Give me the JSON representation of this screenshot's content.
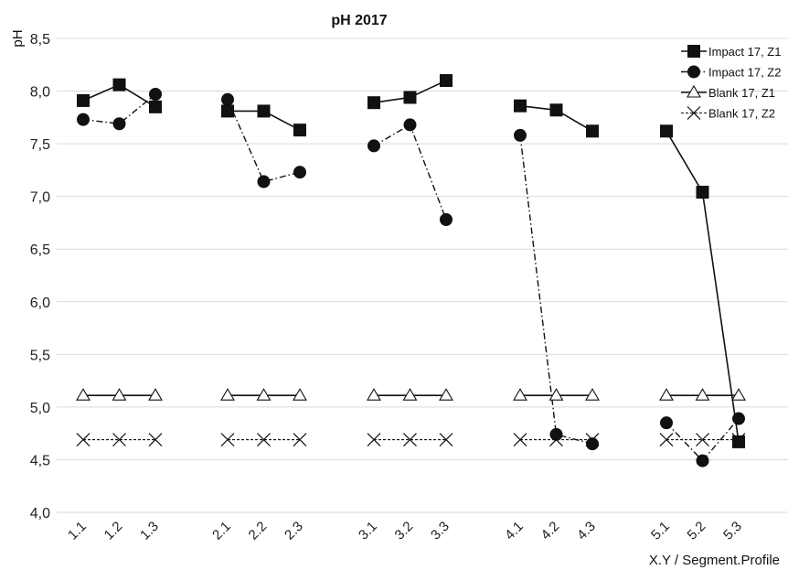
{
  "chart_data": {
    "type": "line",
    "title": "pH 2017",
    "ylabel": "pH",
    "xlabel": "X.Y  / Segment.Profile",
    "ylim": [
      4.0,
      8.5
    ],
    "yticks": [
      "4,0",
      "4,5",
      "5,0",
      "5,5",
      "6,0",
      "6,5",
      "7,0",
      "7,5",
      "8,0",
      "8,5"
    ],
    "grid": "horizontal",
    "legend_position": "top-right",
    "groups": [
      [
        "1.1",
        "1.2",
        "1.3"
      ],
      [
        "2.1",
        "2.2",
        "2.3"
      ],
      [
        "3.1",
        "3.2",
        "3.3"
      ],
      [
        "4.1",
        "4.2",
        "4.3"
      ],
      [
        "5.1",
        "5.2",
        "5.3"
      ]
    ],
    "series": [
      {
        "name": "Impact 17, Z1",
        "marker": "square",
        "line": "solid",
        "values": [
          [
            7.91,
            8.06,
            7.85
          ],
          [
            7.81,
            7.81,
            7.63
          ],
          [
            7.89,
            7.94,
            8.1
          ],
          [
            7.86,
            7.82,
            7.62
          ],
          [
            7.62,
            7.04,
            4.67
          ]
        ]
      },
      {
        "name": "Impact 17, Z2",
        "marker": "circle",
        "line": "dashdot",
        "values": [
          [
            7.73,
            7.69,
            7.97
          ],
          [
            7.92,
            7.14,
            7.23
          ],
          [
            7.48,
            7.68,
            6.78
          ],
          [
            7.58,
            4.74,
            4.65
          ],
          [
            4.85,
            4.49,
            4.89
          ]
        ]
      },
      {
        "name": "Blank 17, Z1",
        "marker": "triangle",
        "line": "solid",
        "values": [
          [
            5.11,
            5.11,
            5.11
          ],
          [
            5.11,
            5.11,
            5.11
          ],
          [
            5.11,
            5.11,
            5.11
          ],
          [
            5.11,
            5.11,
            5.11
          ],
          [
            5.11,
            5.11,
            5.11
          ]
        ]
      },
      {
        "name": "Blank 17, Z2",
        "marker": "x",
        "line": "dashed",
        "values": [
          [
            4.69,
            4.69,
            4.69
          ],
          [
            4.69,
            4.69,
            4.69
          ],
          [
            4.69,
            4.69,
            4.69
          ],
          [
            4.69,
            4.69,
            4.69
          ],
          [
            4.69,
            4.69,
            4.69
          ]
        ]
      }
    ]
  }
}
